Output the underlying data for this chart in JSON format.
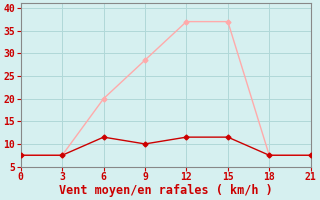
{
  "x_avg": [
    0,
    3,
    6,
    9,
    12,
    15,
    18,
    21
  ],
  "y_avg": [
    7.5,
    7.5,
    11.5,
    10.0,
    11.5,
    11.5,
    7.5,
    7.5
  ],
  "x_gust": [
    0,
    3,
    6,
    9,
    12,
    15,
    18,
    21
  ],
  "y_gust": [
    7.5,
    7.5,
    20.0,
    28.5,
    37.0,
    37.0,
    7.5,
    7.5
  ],
  "avg_color": "#cc0000",
  "gust_color": "#ffaaaa",
  "bg_color": "#d6f0f0",
  "grid_color": "#b0d8d8",
  "xlabel": "Vent moyen/en rafales ( km/h )",
  "xlabel_color": "#cc0000",
  "xlim": [
    0,
    21
  ],
  "ylim": [
    5,
    41
  ],
  "xticks": [
    0,
    3,
    6,
    9,
    12,
    15,
    18,
    21
  ],
  "yticks": [
    5,
    10,
    15,
    20,
    25,
    30,
    35,
    40
  ],
  "tick_color": "#cc0000",
  "marker": "D",
  "marker_size": 2.5,
  "linewidth": 1.0,
  "xlabel_fontsize": 8.5,
  "tick_fontsize": 7
}
